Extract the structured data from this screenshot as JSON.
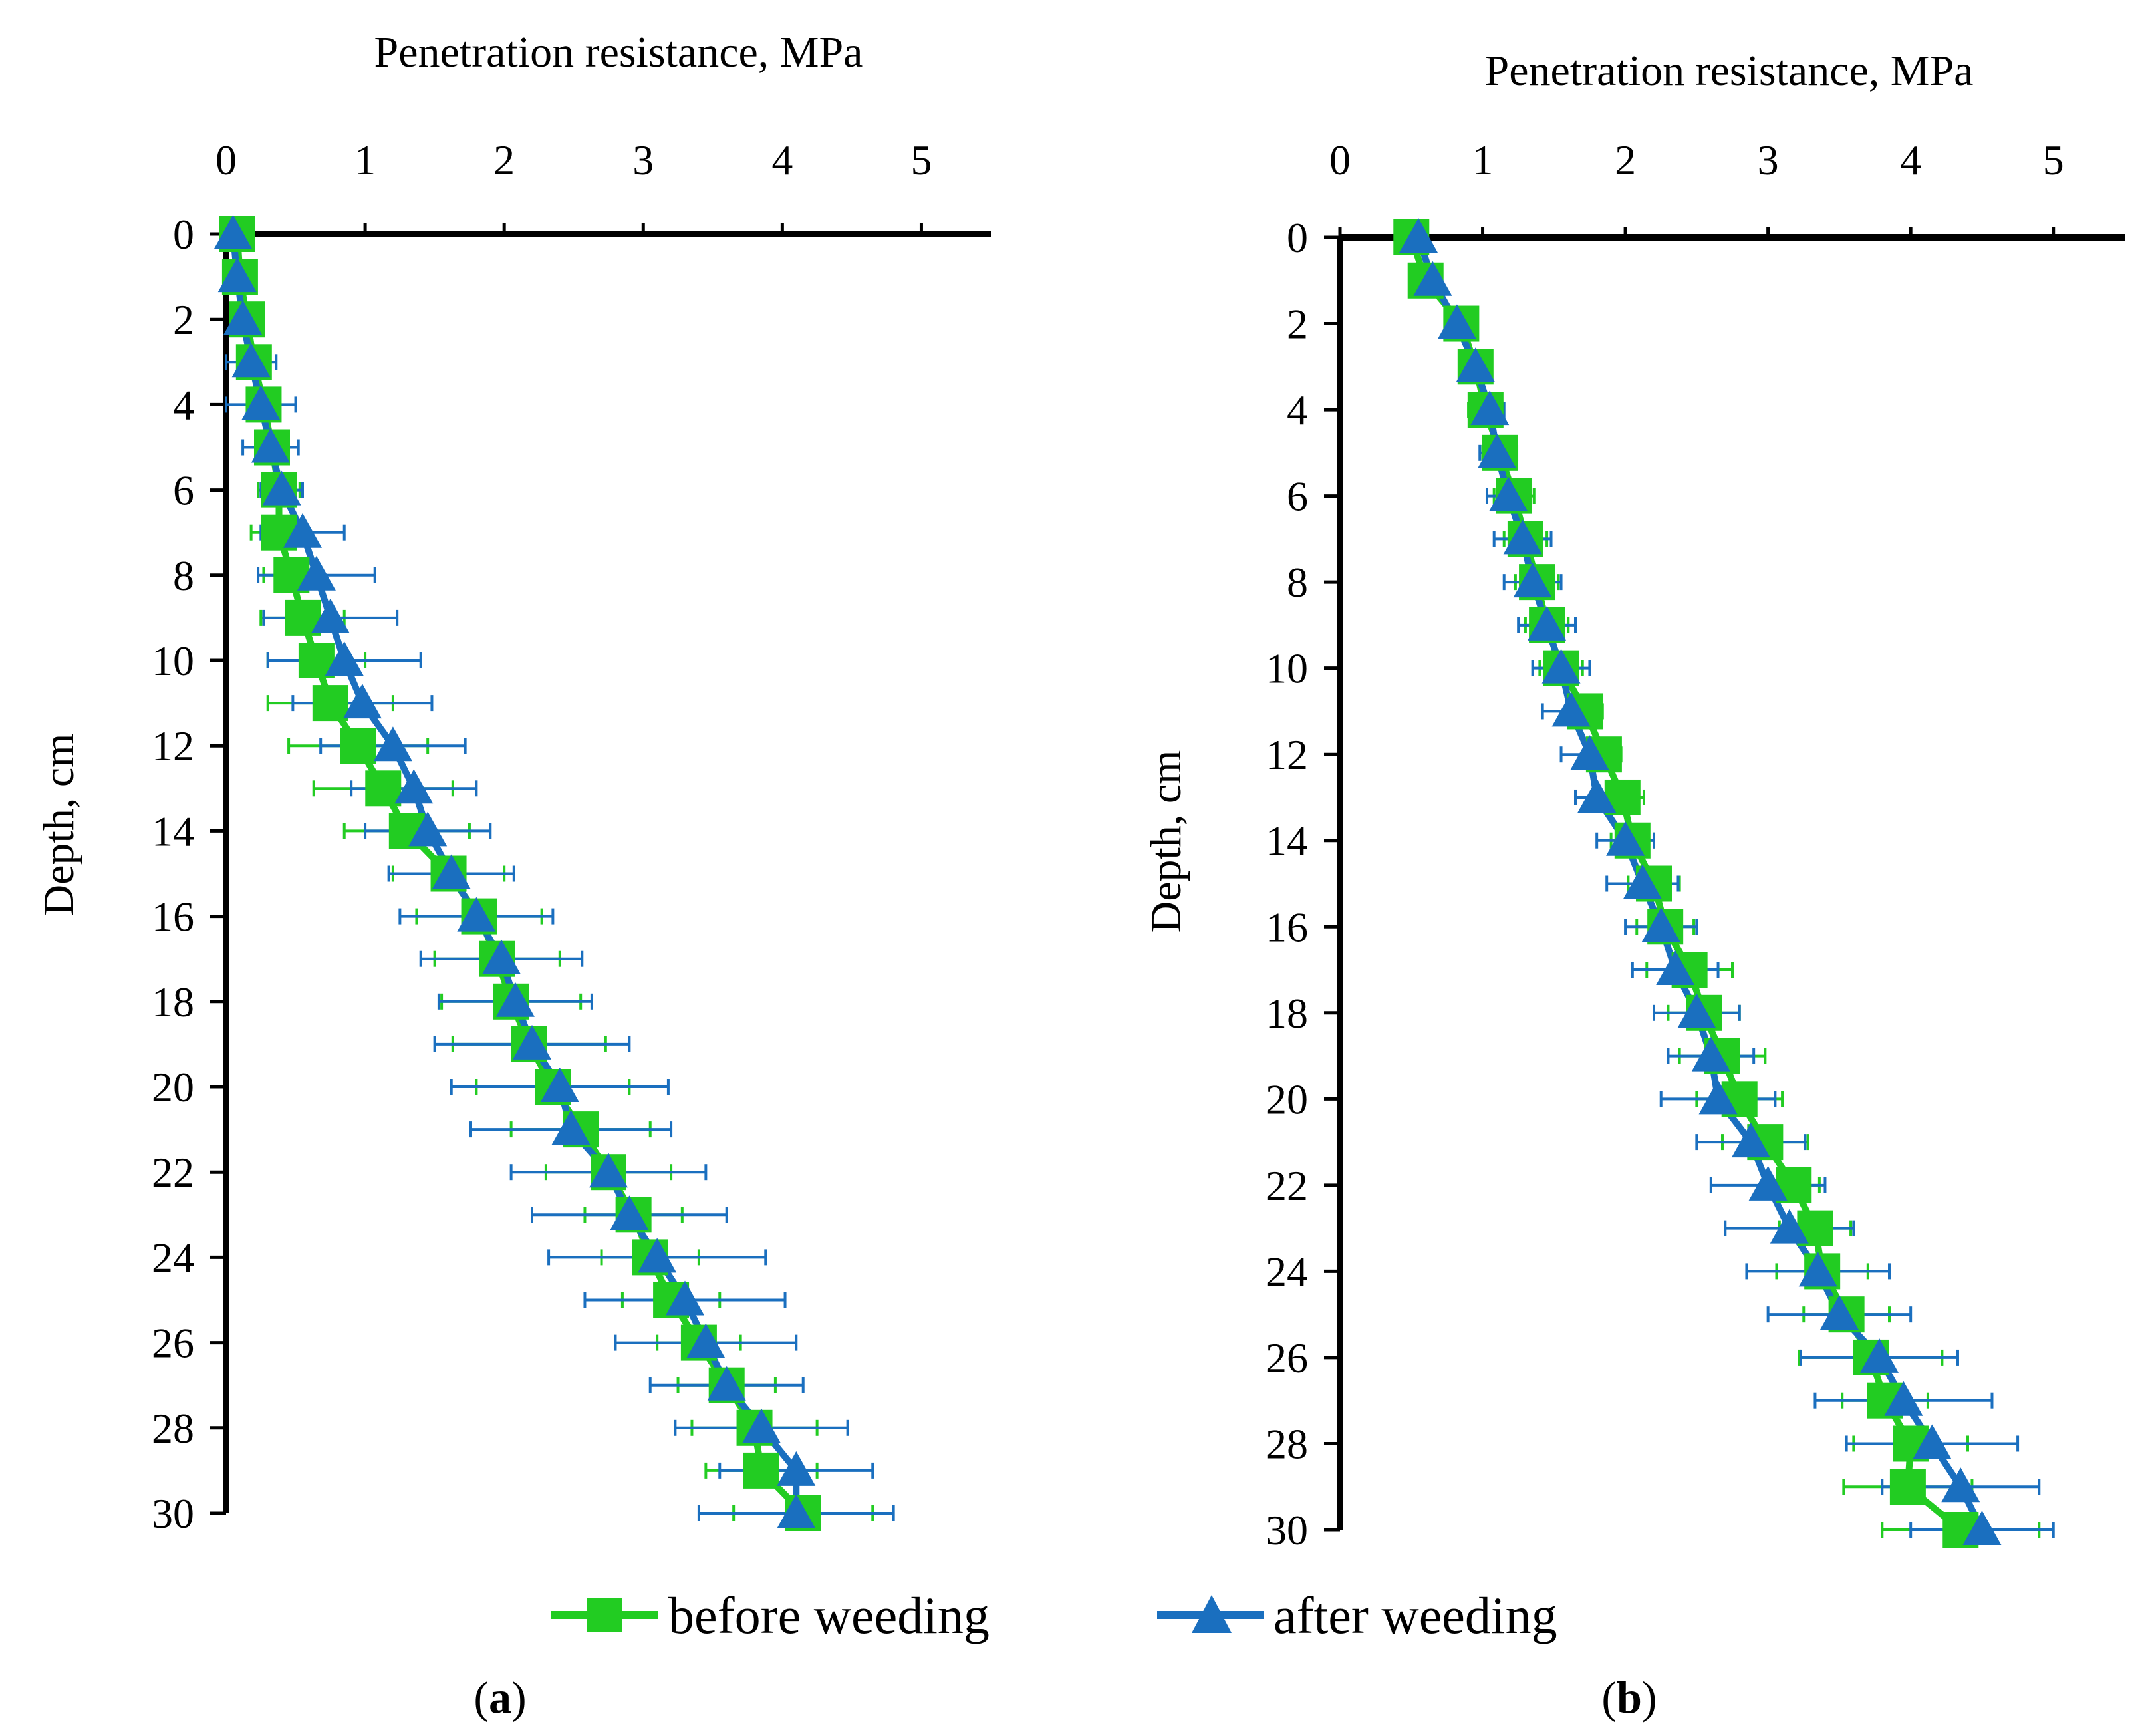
{
  "colors": {
    "before": "#22cc22",
    "after": "#1a6fbf",
    "axis": "#000000"
  },
  "legend": {
    "before_label": "before weeding",
    "after_label": "after weeding"
  },
  "panels": [
    {
      "caption_open": "(",
      "caption_letter": "a",
      "caption_close": ")"
    },
    {
      "caption_open": "(",
      "caption_letter": "b",
      "caption_close": ")"
    }
  ],
  "chart_data": [
    {
      "type": "line",
      "panel": "a",
      "title": "Penetration resistance, MPa",
      "xlabel": "Penetration resistance, MPa",
      "ylabel": "Depth, cm",
      "xlim": [
        0,
        5.5
      ],
      "ylim": [
        0,
        30
      ],
      "x_ticks": [
        0,
        1,
        2,
        3,
        4,
        5
      ],
      "y_ticks": [
        0,
        2,
        4,
        6,
        8,
        10,
        12,
        14,
        16,
        18,
        20,
        22,
        24,
        26,
        28,
        30
      ],
      "depth": [
        0,
        1,
        2,
        3,
        4,
        5,
        6,
        7,
        8,
        9,
        10,
        11,
        12,
        13,
        14,
        15,
        16,
        17,
        18,
        19,
        20,
        21,
        22,
        23,
        24,
        25,
        26,
        27,
        28,
        29,
        30
      ],
      "series": [
        {
          "name": "before weeding",
          "values": [
            0.08,
            0.1,
            0.15,
            0.2,
            0.27,
            0.33,
            0.38,
            0.38,
            0.47,
            0.55,
            0.65,
            0.75,
            0.95,
            1.13,
            1.3,
            1.6,
            1.82,
            1.95,
            2.05,
            2.18,
            2.35,
            2.55,
            2.75,
            2.93,
            3.05,
            3.2,
            3.4,
            3.6,
            3.8,
            3.85,
            4.15
          ],
          "errors": [
            0.02,
            0.02,
            0.04,
            0.08,
            0.1,
            0.1,
            0.15,
            0.2,
            0.2,
            0.3,
            0.35,
            0.45,
            0.5,
            0.5,
            0.45,
            0.4,
            0.45,
            0.45,
            0.5,
            0.55,
            0.55,
            0.5,
            0.45,
            0.35,
            0.35,
            0.35,
            0.3,
            0.35,
            0.45,
            0.4,
            0.5
          ]
        },
        {
          "name": "after weeding",
          "values": [
            0.05,
            0.08,
            0.12,
            0.18,
            0.25,
            0.32,
            0.4,
            0.55,
            0.65,
            0.75,
            0.85,
            0.98,
            1.2,
            1.35,
            1.45,
            1.62,
            1.8,
            1.98,
            2.08,
            2.2,
            2.4,
            2.48,
            2.75,
            2.9,
            3.1,
            3.3,
            3.45,
            3.6,
            3.85,
            4.1,
            4.1
          ],
          "errors": [
            0.02,
            0.03,
            0.08,
            0.18,
            0.25,
            0.2,
            0.15,
            0.3,
            0.42,
            0.48,
            0.55,
            0.5,
            0.52,
            0.45,
            0.45,
            0.45,
            0.55,
            0.58,
            0.55,
            0.7,
            0.78,
            0.72,
            0.7,
            0.7,
            0.78,
            0.72,
            0.65,
            0.55,
            0.62,
            0.55,
            0.7
          ]
        }
      ]
    },
    {
      "type": "line",
      "panel": "b",
      "title": "Penetration resistance, MPa",
      "xlabel": "Penetration resistance, MPa",
      "ylabel": "Depth, cm",
      "xlim": [
        0,
        5.5
      ],
      "ylim": [
        0,
        30
      ],
      "x_ticks": [
        0,
        1,
        2,
        3,
        4,
        5
      ],
      "y_ticks": [
        0,
        2,
        4,
        6,
        8,
        10,
        12,
        14,
        16,
        18,
        20,
        22,
        24,
        26,
        28,
        30
      ],
      "depth": [
        0,
        1,
        2,
        3,
        4,
        5,
        6,
        7,
        8,
        9,
        10,
        11,
        12,
        13,
        14,
        15,
        16,
        17,
        18,
        19,
        20,
        21,
        22,
        23,
        24,
        25,
        26,
        27,
        28,
        29,
        30
      ],
      "series": [
        {
          "name": "before weeding",
          "values": [
            0.5,
            0.6,
            0.85,
            0.95,
            1.02,
            1.12,
            1.22,
            1.3,
            1.38,
            1.45,
            1.55,
            1.72,
            1.85,
            1.98,
            2.05,
            2.2,
            2.28,
            2.45,
            2.55,
            2.68,
            2.8,
            2.98,
            3.18,
            3.33,
            3.38,
            3.55,
            3.72,
            3.82,
            4.0,
            3.98,
            4.35
          ],
          "errors": [
            0.06,
            0.08,
            0.08,
            0.1,
            0.12,
            0.12,
            0.14,
            0.15,
            0.15,
            0.15,
            0.15,
            0.12,
            0.12,
            0.15,
            0.15,
            0.18,
            0.2,
            0.3,
            0.25,
            0.3,
            0.3,
            0.3,
            0.18,
            0.25,
            0.32,
            0.3,
            0.5,
            0.3,
            0.4,
            0.45,
            0.55
          ]
        },
        {
          "name": "after weeding",
          "values": [
            0.55,
            0.65,
            0.82,
            0.95,
            1.05,
            1.1,
            1.18,
            1.28,
            1.35,
            1.45,
            1.55,
            1.62,
            1.75,
            1.8,
            2.0,
            2.12,
            2.25,
            2.35,
            2.5,
            2.6,
            2.65,
            2.88,
            3.0,
            3.15,
            3.35,
            3.5,
            3.78,
            3.95,
            4.15,
            4.35,
            4.5
          ],
          "errors": [
            0.04,
            0.05,
            0.08,
            0.08,
            0.1,
            0.12,
            0.15,
            0.2,
            0.2,
            0.2,
            0.2,
            0.2,
            0.2,
            0.15,
            0.2,
            0.25,
            0.25,
            0.3,
            0.3,
            0.3,
            0.4,
            0.38,
            0.4,
            0.45,
            0.5,
            0.5,
            0.55,
            0.62,
            0.6,
            0.55,
            0.5
          ]
        }
      ]
    }
  ]
}
